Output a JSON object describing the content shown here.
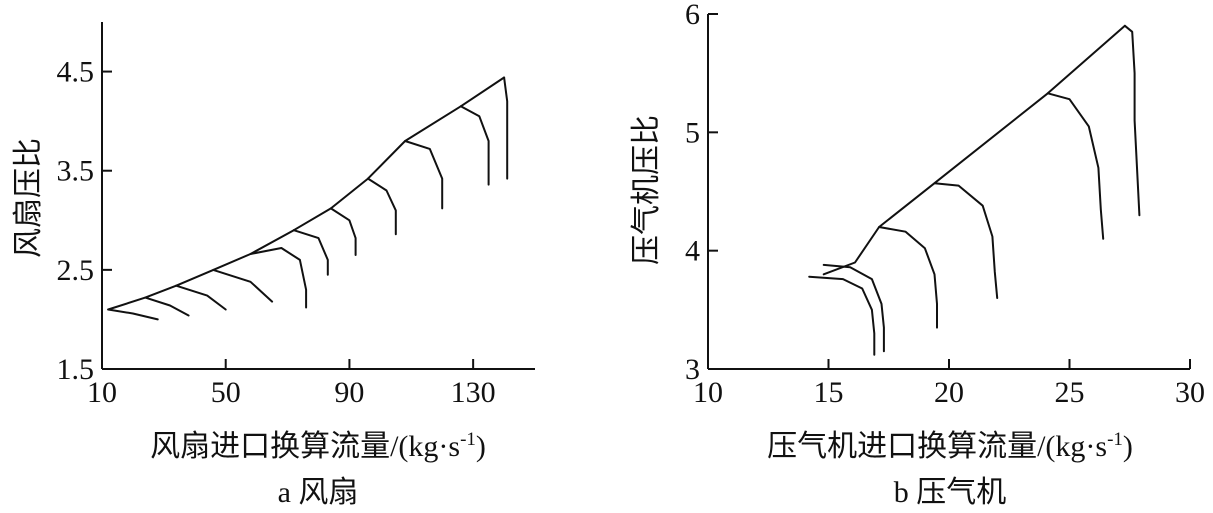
{
  "chart_data": [
    {
      "type": "line",
      "subplot_label": "a",
      "caption": "a 风扇",
      "xlabel": "风扇进口换算流量/(kg·s",
      "xlabel_sup": "-1",
      "xlabel_close": ")",
      "ylabel": "风扇压比",
      "xlim": [
        10,
        150
      ],
      "ylim": [
        1.5,
        5.0
      ],
      "xticks": [
        10,
        50,
        90,
        130
      ],
      "xtick_labels": [
        "10",
        "50",
        "90",
        "130"
      ],
      "yticks": [
        1.5,
        2.5,
        3.5,
        4.5
      ],
      "ytick_labels": [
        "1.5",
        "2.5",
        "3.5",
        "4.5"
      ],
      "grid": false,
      "series": [
        {
          "role": "surge-line",
          "x": [
            12,
            24,
            34,
            46,
            58,
            72,
            84,
            96,
            108,
            126,
            140
          ],
          "y": [
            2.1,
            2.22,
            2.34,
            2.5,
            2.66,
            2.9,
            3.12,
            3.42,
            3.8,
            4.15,
            4.44
          ]
        },
        {
          "role": "speed-line",
          "x": [
            12,
            20,
            28
          ],
          "y": [
            2.1,
            2.06,
            2.0
          ]
        },
        {
          "role": "speed-line",
          "x": [
            24,
            32,
            38
          ],
          "y": [
            2.22,
            2.14,
            2.04
          ]
        },
        {
          "role": "speed-line",
          "x": [
            34,
            44,
            50
          ],
          "y": [
            2.34,
            2.24,
            2.1
          ]
        },
        {
          "role": "speed-line",
          "x": [
            46,
            58,
            65
          ],
          "y": [
            2.5,
            2.38,
            2.18
          ]
        },
        {
          "role": "speed-line",
          "x": [
            58,
            68,
            74,
            76,
            76
          ],
          "y": [
            2.66,
            2.72,
            2.6,
            2.3,
            2.12
          ]
        },
        {
          "role": "speed-line",
          "x": [
            72,
            80,
            83,
            83
          ],
          "y": [
            2.9,
            2.82,
            2.6,
            2.45
          ]
        },
        {
          "role": "speed-line",
          "x": [
            84,
            90,
            92,
            92
          ],
          "y": [
            3.12,
            3.0,
            2.82,
            2.65
          ]
        },
        {
          "role": "speed-line",
          "x": [
            96,
            102,
            105,
            105
          ],
          "y": [
            3.42,
            3.3,
            3.1,
            2.86
          ]
        },
        {
          "role": "speed-line",
          "x": [
            108,
            116,
            120,
            120
          ],
          "y": [
            3.8,
            3.72,
            3.42,
            3.12
          ]
        },
        {
          "role": "speed-line",
          "x": [
            126,
            132,
            135,
            135
          ],
          "y": [
            4.15,
            4.05,
            3.8,
            3.36
          ]
        },
        {
          "role": "speed-line",
          "x": [
            140,
            141,
            141
          ],
          "y": [
            4.44,
            4.2,
            3.42
          ]
        }
      ]
    },
    {
      "type": "line",
      "subplot_label": "b",
      "caption": "b 压气机",
      "xlabel": "压气机进口换算流量/(kg·s",
      "xlabel_sup": "-1",
      "xlabel_close": ")",
      "ylabel": "压气机压比",
      "xlim": [
        10,
        30
      ],
      "ylim": [
        3,
        6
      ],
      "xticks": [
        10,
        15,
        20,
        25,
        30
      ],
      "xtick_labels": [
        "10",
        "15",
        "20",
        "25",
        "30"
      ],
      "yticks": [
        3,
        4,
        5,
        6
      ],
      "ytick_labels": [
        "3",
        "4",
        "5",
        "6"
      ],
      "grid": false,
      "series": [
        {
          "role": "surge-line",
          "x": [
            14.8,
            16.1,
            17.1,
            19.4,
            24.1,
            27.3
          ],
          "y": [
            3.8,
            3.9,
            4.2,
            4.57,
            5.33,
            5.9
          ]
        },
        {
          "role": "speed-line",
          "x": [
            14.2,
            15.6,
            16.4,
            16.8,
            16.9,
            16.9
          ],
          "y": [
            3.78,
            3.76,
            3.68,
            3.5,
            3.3,
            3.12
          ]
        },
        {
          "role": "speed-line",
          "x": [
            14.8,
            15.9,
            16.8,
            17.2,
            17.3,
            17.3
          ],
          "y": [
            3.88,
            3.86,
            3.76,
            3.55,
            3.35,
            3.15
          ]
        },
        {
          "role": "speed-line",
          "x": [
            17.1,
            18.2,
            19.0,
            19.4,
            19.5,
            19.5
          ],
          "y": [
            4.2,
            4.16,
            4.02,
            3.8,
            3.55,
            3.35
          ]
        },
        {
          "role": "speed-line",
          "x": [
            19.4,
            20.4,
            21.4,
            21.8,
            21.9,
            22.0
          ],
          "y": [
            4.57,
            4.55,
            4.38,
            4.12,
            3.82,
            3.6
          ]
        },
        {
          "role": "speed-line",
          "x": [
            24.1,
            25.0,
            25.8,
            26.2,
            26.3,
            26.4
          ],
          "y": [
            5.33,
            5.28,
            5.05,
            4.7,
            4.35,
            4.1
          ]
        },
        {
          "role": "speed-line",
          "x": [
            27.3,
            27.6,
            27.7,
            27.7,
            27.8,
            27.9
          ],
          "y": [
            5.9,
            5.85,
            5.5,
            5.1,
            4.7,
            4.3
          ]
        }
      ]
    }
  ]
}
